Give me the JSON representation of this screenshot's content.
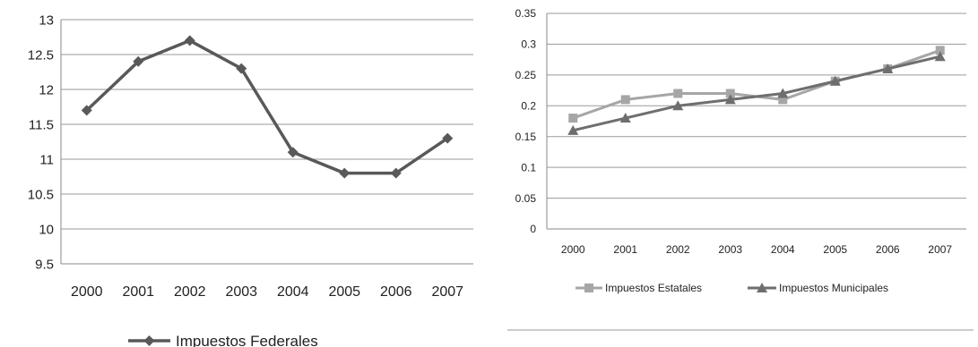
{
  "chart_data": [
    {
      "type": "line",
      "categories": [
        "2000",
        "2001",
        "2002",
        "2003",
        "2004",
        "2005",
        "2006",
        "2007"
      ],
      "series": [
        {
          "name": "Impuestos Federales",
          "values": [
            11.7,
            12.4,
            12.7,
            12.3,
            11.1,
            10.8,
            10.8,
            11.3
          ],
          "color": "#595959",
          "marker": "diamond"
        }
      ],
      "yticks": [
        "9.5",
        "10",
        "10.5",
        "11",
        "11.5",
        "12",
        "12.5",
        "13"
      ],
      "ylim": [
        9.5,
        13
      ],
      "grid": true,
      "legend_position": "bottom"
    },
    {
      "type": "line",
      "categories": [
        "2000",
        "2001",
        "2002",
        "2003",
        "2004",
        "2005",
        "2006",
        "2007"
      ],
      "series": [
        {
          "name": "Impuestos Estatales",
          "values": [
            0.18,
            0.21,
            0.22,
            0.22,
            0.21,
            0.24,
            0.26,
            0.29
          ],
          "color": "#a6a6a6",
          "marker": "square"
        },
        {
          "name": "Impuestos Municipales",
          "values": [
            0.16,
            0.18,
            0.2,
            0.21,
            0.22,
            0.24,
            0.26,
            0.28
          ],
          "color": "#6e6e6e",
          "marker": "triangle"
        }
      ],
      "yticks": [
        "0",
        "0.05",
        "0.1",
        "0.15",
        "0.2",
        "0.25",
        "0.3",
        "0.35"
      ],
      "ylim": [
        0,
        0.35
      ],
      "grid": true,
      "legend_position": "bottom"
    }
  ]
}
